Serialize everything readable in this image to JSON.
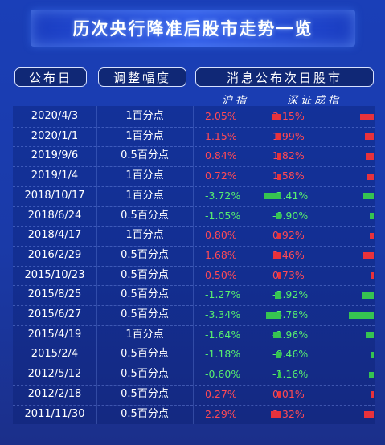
{
  "title": "历次央行降准后股市走势一览",
  "headers": {
    "date": "公布日",
    "size": "调整幅度",
    "market": "消息公布次日股市",
    "sh": "沪指",
    "sz": "深证成指"
  },
  "colors": {
    "positive": "#e8323c",
    "negative": "#36c451"
  },
  "chart_data": {
    "type": "table",
    "title": "历次央行降准后股市走势一览",
    "columns": [
      "公布日",
      "调整幅度",
      "沪指",
      "深证成指"
    ],
    "rows": [
      {
        "date": "2020/4/3",
        "size": "1百分点",
        "sh": "2.05%",
        "sz": "3.15%",
        "sh_value": 2.05,
        "sz_value": 3.15
      },
      {
        "date": "2020/1/1",
        "size": "1百分点",
        "sh": "1.15%",
        "sz": "1.99%",
        "sh_value": 1.15,
        "sz_value": 1.99
      },
      {
        "date": "2019/9/6",
        "size": "0.5百分点",
        "sh": "0.84%",
        "sz": "1.82%",
        "sh_value": 0.84,
        "sz_value": 1.82
      },
      {
        "date": "2019/1/4",
        "size": "1百分点",
        "sh": "0.72%",
        "sz": "1.58%",
        "sh_value": 0.72,
        "sz_value": 1.58
      },
      {
        "date": "2018/10/17",
        "size": "1百分点",
        "sh": "-3.72%",
        "sz": "-2.41%",
        "sh_value": -3.72,
        "sz_value": -2.41
      },
      {
        "date": "2018/6/24",
        "size": "0.5百分点",
        "sh": "-1.05%",
        "sz": "-0.90%",
        "sh_value": -1.05,
        "sz_value": -0.9
      },
      {
        "date": "2018/4/17",
        "size": "1百分点",
        "sh": "0.80%",
        "sz": "0.92%",
        "sh_value": 0.8,
        "sz_value": 0.92
      },
      {
        "date": "2016/2/29",
        "size": "0.5百分点",
        "sh": "1.68%",
        "sz": "2.46%",
        "sh_value": 1.68,
        "sz_value": 2.46
      },
      {
        "date": "2015/10/23",
        "size": "0.5百分点",
        "sh": "0.50%",
        "sz": "0.73%",
        "sh_value": 0.5,
        "sz_value": 0.73
      },
      {
        "date": "2015/8/25",
        "size": "0.5百分点",
        "sh": "-1.27%",
        "sz": "-2.92%",
        "sh_value": -1.27,
        "sz_value": -2.92
      },
      {
        "date": "2015/6/27",
        "size": "0.5百分点",
        "sh": "-3.34%",
        "sz": "-5.78%",
        "sh_value": -3.34,
        "sz_value": -5.78
      },
      {
        "date": "2015/4/19",
        "size": "1百分点",
        "sh": "-1.64%",
        "sz": "-1.96%",
        "sh_value": -1.64,
        "sz_value": -1.96
      },
      {
        "date": "2015/2/4",
        "size": "0.5百分点",
        "sh": "-1.18%",
        "sz": "-0.46%",
        "sh_value": -1.18,
        "sz_value": -0.46
      },
      {
        "date": "2012/5/12",
        "size": "0.5百分点",
        "sh": "-0.60%",
        "sz": "-1.16%",
        "sh_value": -0.6,
        "sz_value": -1.16
      },
      {
        "date": "2012/2/18",
        "size": "0.5百分点",
        "sh": "0.27%",
        "sz": "0.01%",
        "sh_value": 0.27,
        "sz_value": 0.01
      },
      {
        "date": "2011/11/30",
        "size": "0.5百分点",
        "sh": "2.29%",
        "sz": "2.32%",
        "sh_value": 2.29,
        "sz_value": 2.32
      }
    ]
  }
}
